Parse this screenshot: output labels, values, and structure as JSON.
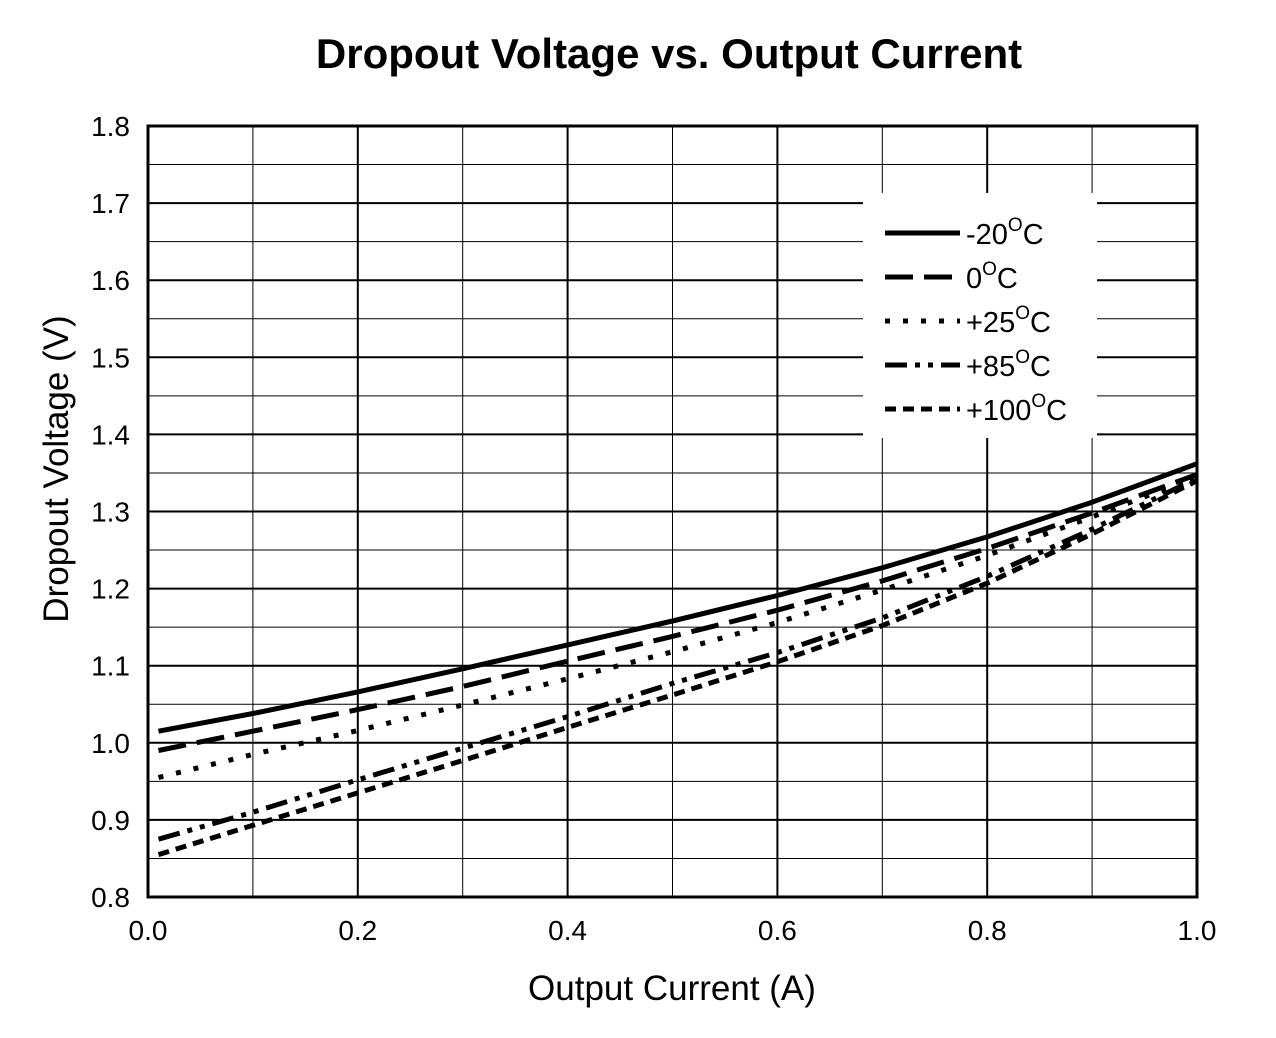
{
  "chart_data": {
    "type": "line",
    "title": "Dropout Voltage vs. Output Current",
    "xlabel": "Output Current (A)",
    "ylabel": "Dropout Voltage (V)",
    "xlim": [
      0.0,
      1.0
    ],
    "ylim": [
      0.8,
      1.8
    ],
    "x_ticks": [
      "0.0",
      "0.2",
      "0.4",
      "0.6",
      "0.8",
      "1.0"
    ],
    "y_ticks": [
      "0.8",
      "0.9",
      "1.0",
      "1.1",
      "1.2",
      "1.3",
      "1.4",
      "1.5",
      "1.6",
      "1.7",
      "1.8"
    ],
    "grid": true,
    "legend_position": "top-right",
    "x": [
      0.01,
      0.1,
      0.2,
      0.3,
      0.4,
      0.5,
      0.6,
      0.7,
      0.8,
      0.9,
      1.0
    ],
    "series": [
      {
        "name": "-20°C",
        "label_main": "-20",
        "label_sup": "O",
        "label_end": "C",
        "dash": "solid",
        "values": [
          1.015,
          1.038,
          1.066,
          1.096,
          1.127,
          1.158,
          1.191,
          1.227,
          1.267,
          1.312,
          1.362
        ]
      },
      {
        "name": "0°C",
        "label_main": "0",
        "label_sup": "O",
        "label_end": "C",
        "dash": "dash",
        "values": [
          0.99,
          1.015,
          1.043,
          1.073,
          1.106,
          1.138,
          1.172,
          1.21,
          1.252,
          1.298,
          1.348
        ]
      },
      {
        "name": "+25°C",
        "label_main": "+25",
        "label_sup": "O",
        "label_end": "C",
        "dash": "dot",
        "values": [
          0.955,
          0.985,
          1.016,
          1.049,
          1.083,
          1.118,
          1.156,
          1.198,
          1.243,
          1.293,
          1.345
        ]
      },
      {
        "name": "+85°C",
        "label_main": "+85",
        "label_sup": "O",
        "label_end": "C",
        "dash": "dashdotdot",
        "values": [
          0.875,
          0.91,
          0.952,
          0.993,
          1.034,
          1.077,
          1.117,
          1.162,
          1.216,
          1.277,
          1.343
        ]
      },
      {
        "name": "+100°C",
        "label_main": "+100",
        "label_sup": "O",
        "label_end": "C",
        "dash": "shortdash",
        "values": [
          0.855,
          0.893,
          0.935,
          0.977,
          1.02,
          1.062,
          1.105,
          1.152,
          1.207,
          1.271,
          1.34
        ]
      }
    ]
  }
}
